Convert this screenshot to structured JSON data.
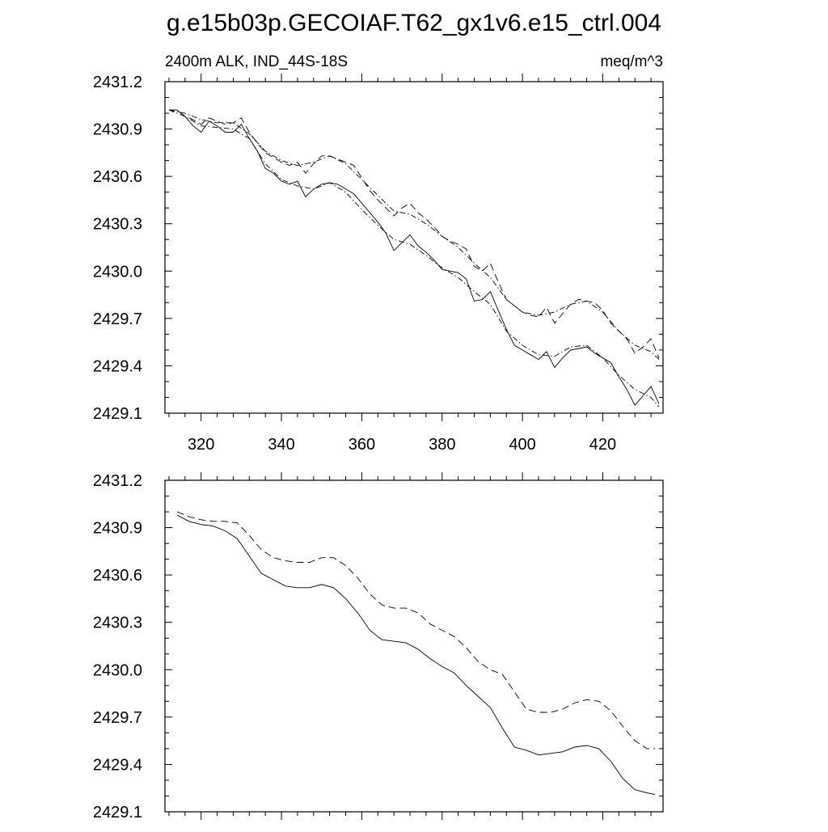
{
  "title": "g.e15b03p.GECOIAF.T62_gx1v6.e15_ctrl.004",
  "subtitle_left": "2400m ALK, IND_44S-18S",
  "subtitle_right": "meq/m^3",
  "chart_data": [
    {
      "type": "line",
      "panel": "top",
      "xlim": [
        311,
        435
      ],
      "ylim": [
        2429.1,
        2431.2
      ],
      "xticks": [
        320,
        340,
        360,
        380,
        400,
        420
      ],
      "yticks": [
        2429.1,
        2429.4,
        2429.7,
        2430.0,
        2430.3,
        2430.6,
        2430.9,
        2431.2
      ],
      "ytick_labels": [
        "2429.1",
        "2429.4",
        "2429.7",
        "2430.0",
        "2430.3",
        "2430.6",
        "2430.9",
        "2431.2"
      ],
      "xtick_labels": [
        "320",
        "340",
        "360",
        "380",
        "400",
        "420"
      ],
      "series": [
        {
          "style": "solid",
          "x": [
            312,
            314,
            316,
            318,
            320,
            322,
            324,
            326,
            328,
            330,
            332,
            334,
            336,
            338,
            340,
            342,
            344,
            346,
            348,
            350,
            352,
            354,
            356,
            358,
            360,
            362,
            364,
            366,
            368,
            370,
            372,
            374,
            376,
            378,
            380,
            382,
            384,
            386,
            388,
            390,
            392,
            394,
            396,
            398,
            400,
            402,
            404,
            406,
            408,
            410,
            412,
            414,
            416,
            418,
            420,
            422,
            424,
            426,
            428,
            430,
            432,
            434
          ],
          "y": [
            2431.02,
            2431.02,
            2430.98,
            2430.92,
            2430.88,
            2430.95,
            2430.92,
            2430.88,
            2430.88,
            2430.93,
            2430.84,
            2430.76,
            2430.65,
            2430.62,
            2430.57,
            2430.55,
            2430.57,
            2430.47,
            2430.52,
            2430.55,
            2430.56,
            2430.55,
            2430.52,
            2430.49,
            2430.43,
            2430.37,
            2430.31,
            2430.24,
            2430.13,
            2430.18,
            2430.23,
            2430.16,
            2430.12,
            2430.07,
            2430.01,
            2430.0,
            2429.99,
            2429.95,
            2429.81,
            2429.82,
            2429.87,
            2429.75,
            2429.63,
            2429.53,
            2429.5,
            2429.47,
            2429.44,
            2429.49,
            2429.39,
            2429.45,
            2429.5,
            2429.51,
            2429.52,
            2429.48,
            2429.45,
            2429.42,
            2429.33,
            2429.25,
            2429.15,
            2429.21,
            2429.27,
            2429.16
          ]
        },
        {
          "style": "dashed",
          "x": [
            312,
            314,
            316,
            318,
            320,
            322,
            324,
            326,
            328,
            330,
            332,
            334,
            336,
            338,
            340,
            342,
            344,
            346,
            348,
            350,
            352,
            354,
            356,
            358,
            360,
            362,
            364,
            366,
            368,
            370,
            372,
            374,
            376,
            378,
            380,
            382,
            384,
            386,
            388,
            390,
            392,
            394,
            396,
            398,
            400,
            402,
            404,
            406,
            408,
            410,
            412,
            414,
            416,
            418,
            420,
            422,
            424,
            426,
            428,
            430,
            432,
            434
          ],
          "y": [
            2431.02,
            2431.02,
            2430.98,
            2430.96,
            2430.93,
            2430.97,
            2430.95,
            2430.93,
            2430.94,
            2430.97,
            2430.88,
            2430.81,
            2430.75,
            2430.72,
            2430.69,
            2430.67,
            2430.69,
            2430.62,
            2430.68,
            2430.73,
            2430.73,
            2430.71,
            2430.69,
            2430.67,
            2430.59,
            2430.51,
            2430.45,
            2430.4,
            2430.35,
            2430.4,
            2430.43,
            2430.37,
            2430.33,
            2430.28,
            2430.22,
            2430.19,
            2430.17,
            2430.14,
            2430.03,
            2430.0,
            2430.05,
            2429.93,
            2429.82,
            2429.78,
            2429.74,
            2429.72,
            2429.71,
            2429.77,
            2429.67,
            2429.73,
            2429.79,
            2429.82,
            2429.81,
            2429.8,
            2429.75,
            2429.67,
            2429.62,
            2429.57,
            2429.48,
            2429.52,
            2429.57,
            2429.45
          ]
        },
        {
          "style": "dashdot",
          "x": [
            312,
            316,
            320,
            324,
            328,
            332,
            336,
            340,
            344,
            348,
            352,
            356,
            360,
            364,
            368,
            372,
            376,
            380,
            384,
            388,
            392,
            396,
            400,
            404,
            408,
            412,
            416,
            420,
            424,
            428,
            432,
            434
          ],
          "y": [
            2431.02,
            2430.98,
            2430.92,
            2430.91,
            2430.9,
            2430.84,
            2430.68,
            2430.58,
            2430.54,
            2430.52,
            2430.56,
            2430.5,
            2430.39,
            2430.29,
            2430.2,
            2430.17,
            2430.1,
            2430.02,
            2429.96,
            2429.87,
            2429.79,
            2429.62,
            2429.53,
            2429.47,
            2429.46,
            2429.52,
            2429.53,
            2429.45,
            2429.34,
            2429.25,
            2429.2,
            2429.14
          ]
        },
        {
          "style": "dashdot",
          "x": [
            312,
            316,
            320,
            324,
            328,
            332,
            336,
            340,
            344,
            348,
            352,
            356,
            360,
            364,
            368,
            372,
            376,
            380,
            384,
            388,
            392,
            396,
            400,
            404,
            408,
            412,
            416,
            420,
            424,
            428,
            432,
            434
          ],
          "y": [
            2431.02,
            2431.0,
            2430.96,
            2430.94,
            2430.94,
            2430.87,
            2430.76,
            2430.7,
            2430.67,
            2430.69,
            2430.73,
            2430.68,
            2430.58,
            2430.48,
            2430.38,
            2430.36,
            2430.3,
            2430.22,
            2430.15,
            2430.05,
            2429.96,
            2429.82,
            2429.74,
            2429.72,
            2429.74,
            2429.79,
            2429.81,
            2429.74,
            2429.62,
            2429.53,
            2429.49,
            2429.44
          ]
        }
      ]
    },
    {
      "type": "line",
      "panel": "bottom",
      "xlim": [
        311,
        435
      ],
      "ylim": [
        2429.1,
        2431.2
      ],
      "xticks": [
        320,
        340,
        360,
        380,
        400,
        420
      ],
      "yticks": [
        2429.1,
        2429.4,
        2429.7,
        2430.0,
        2430.3,
        2430.6,
        2430.9,
        2431.2
      ],
      "ytick_labels": [
        "2429.1",
        "2429.4",
        "2429.7",
        "2430.0",
        "2430.3",
        "2430.6",
        "2430.9",
        "2431.2"
      ],
      "series": [
        {
          "style": "solid",
          "x": [
            314,
            317,
            320,
            323,
            326,
            329,
            332,
            335,
            338,
            341,
            344,
            347,
            350,
            353,
            356,
            359,
            362,
            365,
            368,
            371,
            374,
            377,
            380,
            383,
            386,
            389,
            392,
            395,
            398,
            401,
            404,
            407,
            410,
            413,
            416,
            419,
            422,
            425,
            428,
            431,
            433
          ],
          "y": [
            2430.98,
            2430.94,
            2430.92,
            2430.91,
            2430.88,
            2430.83,
            2430.72,
            2430.61,
            2430.57,
            2430.53,
            2430.52,
            2430.52,
            2430.54,
            2430.52,
            2430.45,
            2430.36,
            2430.25,
            2430.19,
            2430.18,
            2430.17,
            2430.13,
            2430.07,
            2430.02,
            2429.98,
            2429.9,
            2429.83,
            2429.76,
            2429.63,
            2429.51,
            2429.49,
            2429.46,
            2429.47,
            2429.48,
            2429.51,
            2429.52,
            2429.5,
            2429.42,
            2429.31,
            2429.24,
            2429.22,
            2429.21
          ]
        },
        {
          "style": "dashed",
          "x": [
            314,
            317,
            320,
            323,
            326,
            329,
            332,
            335,
            338,
            341,
            344,
            347,
            350,
            353,
            356,
            359,
            362,
            365,
            368,
            371,
            374,
            377,
            380,
            383,
            386,
            389,
            392,
            395,
            398,
            401,
            404,
            407,
            410,
            413,
            416,
            419,
            422,
            425,
            428,
            431,
            433
          ],
          "y": [
            2431.0,
            2430.97,
            2430.95,
            2430.94,
            2430.94,
            2430.93,
            2430.85,
            2430.76,
            2430.71,
            2430.69,
            2430.68,
            2430.68,
            2430.71,
            2430.71,
            2430.66,
            2430.58,
            2430.48,
            2430.41,
            2430.39,
            2430.39,
            2430.36,
            2430.29,
            2430.25,
            2430.21,
            2430.14,
            2430.05,
            2430.0,
            2429.97,
            2429.86,
            2429.75,
            2429.73,
            2429.73,
            2429.75,
            2429.79,
            2429.81,
            2429.8,
            2429.74,
            2429.64,
            2429.55,
            2429.5,
            2429.5
          ]
        }
      ]
    }
  ]
}
